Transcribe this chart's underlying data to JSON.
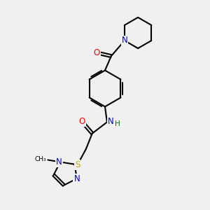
{
  "background_color": "#f0f0f0",
  "atom_colors": {
    "C": "#000000",
    "N": "#0000cc",
    "O": "#ff0000",
    "S": "#ccaa00",
    "H": "#007700"
  },
  "bond_color": "#000000",
  "bond_width": 1.5,
  "font_size_atoms": 8.5
}
